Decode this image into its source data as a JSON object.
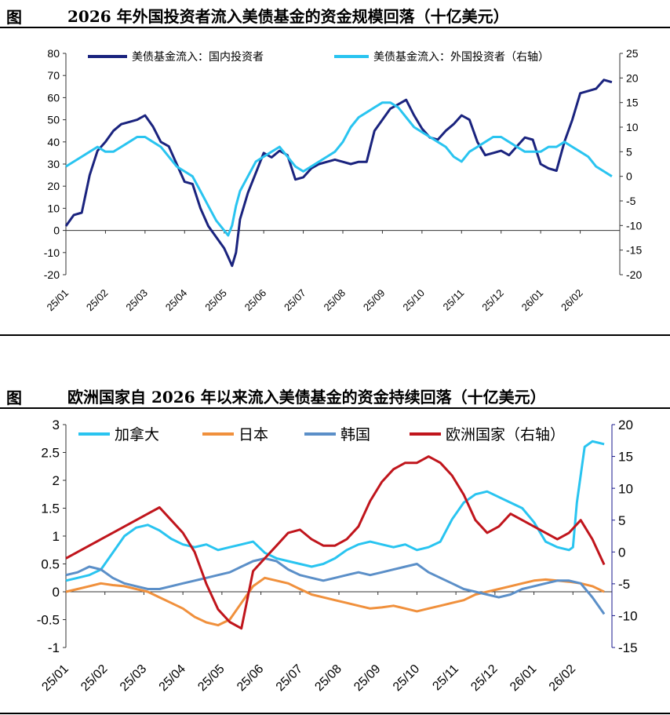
{
  "figures": [
    {
      "label": "图",
      "title": "2026 年外国投资者流入美债基金的资金规模回落（十亿美元）"
    },
    {
      "label": "图",
      "title": "欧洲国家自 2026 年以来流入美债基金的资金持续回落（十亿美元）"
    }
  ],
  "chart_data": [
    {
      "type": "line",
      "title": "2026 年外国投资者流入美债基金的资金规模回落（十亿美元）",
      "x_ticks": [
        "25/01",
        "25/02",
        "25/03",
        "25/04",
        "25/05",
        "25/06",
        "25/07",
        "25/08",
        "25/09",
        "25/10",
        "25/11",
        "25/12",
        "26/01",
        "26/02"
      ],
      "ylim_left": [
        -20,
        80
      ],
      "yticks_left": [
        80,
        70,
        60,
        50,
        40,
        30,
        20,
        10,
        0,
        -10,
        -20
      ],
      "ylim_right": [
        -20,
        25
      ],
      "yticks_right": [
        25,
        20,
        15,
        10,
        5,
        0,
        -5,
        -10,
        -15,
        -20
      ],
      "series": [
        {
          "name": "美债基金流入：国内投资者",
          "axis": "left",
          "color": "#1a237e",
          "x": [
            0,
            0.2,
            0.4,
            0.6,
            0.8,
            1,
            1.2,
            1.4,
            1.6,
            1.8,
            2,
            2.2,
            2.4,
            2.6,
            2.8,
            3,
            3.2,
            3.4,
            3.6,
            3.8,
            4,
            4.1,
            4.2,
            4.3,
            4.4,
            4.6,
            4.8,
            5,
            5.2,
            5.4,
            5.6,
            5.8,
            6,
            6.2,
            6.4,
            6.6,
            6.8,
            7,
            7.2,
            7.4,
            7.6,
            7.8,
            8,
            8.2,
            8.4,
            8.6,
            8.8,
            9,
            9.2,
            9.4,
            9.6,
            9.8,
            10,
            10.2,
            10.4,
            10.6,
            10.8,
            11,
            11.2,
            11.4,
            11.6,
            11.8,
            12,
            12.2,
            12.4,
            12.6,
            12.8,
            13,
            13.2,
            13.4,
            13.6,
            13.8
          ],
          "values": [
            2,
            7,
            8,
            25,
            36,
            40,
            45,
            48,
            49,
            50,
            52,
            47,
            40,
            38,
            30,
            22,
            21,
            10,
            2,
            -3,
            -8,
            -12,
            -16,
            -10,
            5,
            17,
            26,
            35,
            33,
            36,
            34,
            23,
            24,
            28,
            30,
            31,
            32,
            31,
            30,
            31,
            31,
            45,
            50,
            55,
            57,
            59,
            52,
            46,
            42,
            41,
            45,
            48,
            52,
            50,
            40,
            34,
            35,
            36,
            34,
            38,
            42,
            41,
            30,
            28,
            27,
            40,
            50,
            62,
            63,
            64,
            68,
            67
          ]
        },
        {
          "name": "美债基金流入：外国投资者（右轴）",
          "axis": "right",
          "color": "#29c4f0",
          "x": [
            0,
            0.2,
            0.4,
            0.6,
            0.8,
            1,
            1.2,
            1.4,
            1.6,
            1.8,
            2,
            2.2,
            2.4,
            2.6,
            2.8,
            3,
            3.2,
            3.4,
            3.6,
            3.8,
            4,
            4.1,
            4.2,
            4.3,
            4.4,
            4.6,
            4.8,
            5,
            5.2,
            5.4,
            5.6,
            5.8,
            6,
            6.2,
            6.4,
            6.6,
            6.8,
            7,
            7.2,
            7.4,
            7.6,
            7.8,
            8,
            8.2,
            8.4,
            8.6,
            8.8,
            9,
            9.2,
            9.4,
            9.6,
            9.8,
            10,
            10.2,
            10.4,
            10.6,
            10.8,
            11,
            11.2,
            11.4,
            11.6,
            11.8,
            12,
            12.2,
            12.4,
            12.6,
            12.8,
            13,
            13.2,
            13.4,
            13.6,
            13.8
          ],
          "values": [
            2,
            3,
            4,
            5,
            6,
            5,
            5,
            6,
            7,
            8,
            8,
            7,
            6,
            4,
            2,
            1,
            0,
            -3,
            -6,
            -9,
            -11,
            -12,
            -10,
            -6,
            -3,
            0,
            3,
            4,
            5,
            6,
            4,
            2,
            1,
            2,
            3,
            4,
            5,
            7,
            10,
            12,
            13,
            14,
            15,
            15,
            14,
            12,
            10,
            9,
            8,
            7,
            6,
            4,
            3,
            5,
            6,
            7,
            8,
            8,
            7,
            6,
            5,
            5,
            5,
            6,
            6,
            7,
            6,
            5,
            4,
            2,
            1,
            0
          ]
        }
      ]
    },
    {
      "type": "line",
      "title": "欧洲国家自 2026 年以来流入美债基金的资金持续回落（十亿美元）",
      "x_ticks": [
        "25/01",
        "25/02",
        "25/03",
        "25/04",
        "25/05",
        "25/06",
        "25/07",
        "25/08",
        "25/09",
        "25/10",
        "25/11",
        "25/12",
        "26/01",
        "26/02"
      ],
      "ylim_left": [
        -1,
        3
      ],
      "yticks_left": [
        "3",
        "2.5",
        "2",
        "1.5",
        "1",
        "0.5",
        "0",
        "-0.5",
        "-1"
      ],
      "ylim_right": [
        -15,
        20
      ],
      "yticks_right": [
        20,
        15,
        10,
        5,
        0,
        -5,
        -10,
        -15
      ],
      "series": [
        {
          "name": "加拿大",
          "axis": "left",
          "color": "#29c4f0",
          "x": [
            0,
            0.3,
            0.6,
            0.9,
            1.2,
            1.5,
            1.8,
            2.1,
            2.4,
            2.7,
            3,
            3.3,
            3.6,
            3.9,
            4.2,
            4.5,
            4.8,
            5.1,
            5.4,
            5.7,
            6,
            6.3,
            6.6,
            6.9,
            7.2,
            7.5,
            7.8,
            8.1,
            8.4,
            8.7,
            9,
            9.3,
            9.6,
            9.9,
            10.2,
            10.5,
            10.8,
            11.1,
            11.4,
            11.7,
            12,
            12.3,
            12.6,
            12.9,
            13,
            13.1,
            13.3,
            13.5,
            13.8
          ],
          "values": [
            0.2,
            0.25,
            0.3,
            0.4,
            0.7,
            1.0,
            1.15,
            1.2,
            1.1,
            0.95,
            0.85,
            0.8,
            0.85,
            0.75,
            0.8,
            0.85,
            0.9,
            0.7,
            0.6,
            0.55,
            0.5,
            0.45,
            0.5,
            0.6,
            0.75,
            0.85,
            0.9,
            0.85,
            0.8,
            0.85,
            0.75,
            0.8,
            0.9,
            1.3,
            1.6,
            1.75,
            1.8,
            1.7,
            1.6,
            1.5,
            1.25,
            0.9,
            0.8,
            0.75,
            0.8,
            1.6,
            2.6,
            2.7,
            2.65
          ]
        },
        {
          "name": "日本",
          "axis": "left",
          "color": "#f0903c",
          "x": [
            0,
            0.3,
            0.6,
            0.9,
            1.2,
            1.5,
            1.8,
            2.1,
            2.4,
            2.7,
            3,
            3.3,
            3.6,
            3.9,
            4.2,
            4.5,
            4.8,
            5.1,
            5.4,
            5.7,
            6,
            6.3,
            6.6,
            6.9,
            7.2,
            7.5,
            7.8,
            8.1,
            8.4,
            8.7,
            9,
            9.3,
            9.6,
            9.9,
            10.2,
            10.5,
            10.8,
            11.1,
            11.4,
            11.7,
            12,
            12.3,
            12.6,
            12.9,
            13.2,
            13.5,
            13.8
          ],
          "values": [
            0,
            0.05,
            0.1,
            0.15,
            0.12,
            0.1,
            0.05,
            0,
            -0.1,
            -0.2,
            -0.3,
            -0.45,
            -0.55,
            -0.6,
            -0.5,
            -0.2,
            0.1,
            0.25,
            0.2,
            0.15,
            0.05,
            -0.05,
            -0.1,
            -0.15,
            -0.2,
            -0.25,
            -0.3,
            -0.28,
            -0.25,
            -0.3,
            -0.35,
            -0.3,
            -0.25,
            -0.2,
            -0.15,
            -0.05,
            0,
            0.05,
            0.1,
            0.15,
            0.2,
            0.22,
            0.2,
            0.18,
            0.15,
            0.1,
            0.0
          ]
        },
        {
          "name": "韩国",
          "axis": "left",
          "color": "#5b8fc8",
          "x": [
            0,
            0.3,
            0.6,
            0.9,
            1.2,
            1.5,
            1.8,
            2.1,
            2.4,
            2.7,
            3,
            3.3,
            3.6,
            3.9,
            4.2,
            4.5,
            4.8,
            5.1,
            5.4,
            5.7,
            6,
            6.3,
            6.6,
            6.9,
            7.2,
            7.5,
            7.8,
            8.1,
            8.4,
            8.7,
            9,
            9.3,
            9.6,
            9.9,
            10.2,
            10.5,
            10.8,
            11.1,
            11.4,
            11.7,
            12,
            12.3,
            12.6,
            12.9,
            13.2,
            13.5,
            13.8
          ],
          "values": [
            0.3,
            0.35,
            0.45,
            0.4,
            0.25,
            0.15,
            0.1,
            0.05,
            0.05,
            0.1,
            0.15,
            0.2,
            0.25,
            0.3,
            0.35,
            0.45,
            0.55,
            0.6,
            0.55,
            0.4,
            0.3,
            0.25,
            0.2,
            0.25,
            0.3,
            0.35,
            0.3,
            0.35,
            0.4,
            0.45,
            0.5,
            0.35,
            0.25,
            0.15,
            0.05,
            0,
            -0.05,
            -0.1,
            -0.05,
            0.05,
            0.1,
            0.15,
            0.2,
            0.2,
            0.15,
            -0.1,
            -0.4
          ]
        },
        {
          "name": "欧洲国家（右轴）",
          "axis": "right",
          "color": "#c0151c",
          "x": [
            0,
            0.3,
            0.6,
            0.9,
            1.2,
            1.5,
            1.8,
            2.1,
            2.4,
            2.7,
            3,
            3.3,
            3.6,
            3.9,
            4.2,
            4.5,
            4.8,
            5.1,
            5.4,
            5.7,
            6,
            6.3,
            6.6,
            6.9,
            7.2,
            7.5,
            7.8,
            8.1,
            8.4,
            8.7,
            9,
            9.3,
            9.6,
            9.9,
            10.2,
            10.5,
            10.8,
            11.1,
            11.4,
            11.7,
            12,
            12.3,
            12.6,
            12.9,
            13.2,
            13.5,
            13.8
          ],
          "values": [
            -1,
            0,
            1,
            2,
            3,
            4,
            5,
            6,
            7,
            5,
            3,
            0,
            -5,
            -9,
            -11,
            -12,
            -3,
            -1,
            1,
            3,
            3.5,
            2,
            1,
            1,
            2,
            4,
            8,
            11,
            13,
            14,
            14,
            15,
            14,
            12,
            9,
            5,
            3,
            4,
            6,
            5,
            4,
            3,
            2,
            3,
            5,
            2,
            -2
          ]
        }
      ]
    }
  ]
}
